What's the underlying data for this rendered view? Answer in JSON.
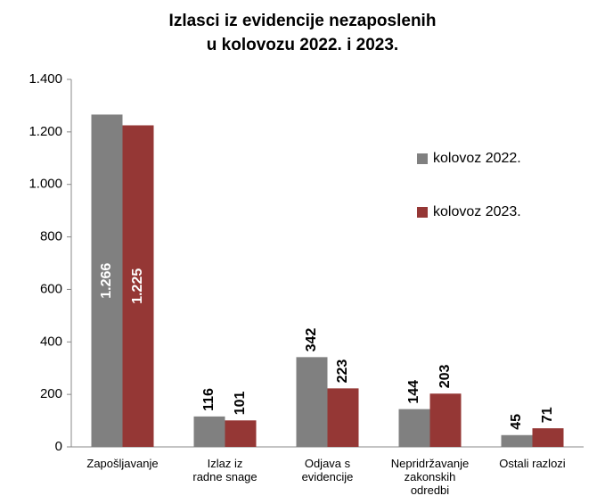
{
  "chart_data": {
    "type": "bar",
    "title": "Izlasci iz evidencije nezaposlenih\nu kolovozu 2022. i 2023.",
    "categories": [
      "Zapošljavanje",
      "Izlaz iz\nradne snage",
      "Odjava s\nevidencije",
      "Nepridržavanje\nzakonskih\nodredbi",
      "Ostali razlozi"
    ],
    "series": [
      {
        "name": "kolovoz 2022.",
        "color": "#808080",
        "values": [
          1266,
          116,
          342,
          144,
          45
        ],
        "value_labels": [
          "1.266",
          "116",
          "342",
          "144",
          "45"
        ]
      },
      {
        "name": "kolovoz 2023.",
        "color": "#953735",
        "values": [
          1225,
          101,
          223,
          203,
          71
        ],
        "value_labels": [
          "1.225",
          "101",
          "223",
          "203",
          "71"
        ]
      }
    ],
    "ylim": [
      0,
      1400
    ],
    "yticks": [
      0,
      200,
      400,
      600,
      800,
      {
        "value": 1000,
        "label": "1.000"
      },
      {
        "value": 1200,
        "label": "1.200"
      },
      {
        "value": 1400,
        "label": "1.400"
      }
    ],
    "grid": false,
    "legend": "right"
  }
}
